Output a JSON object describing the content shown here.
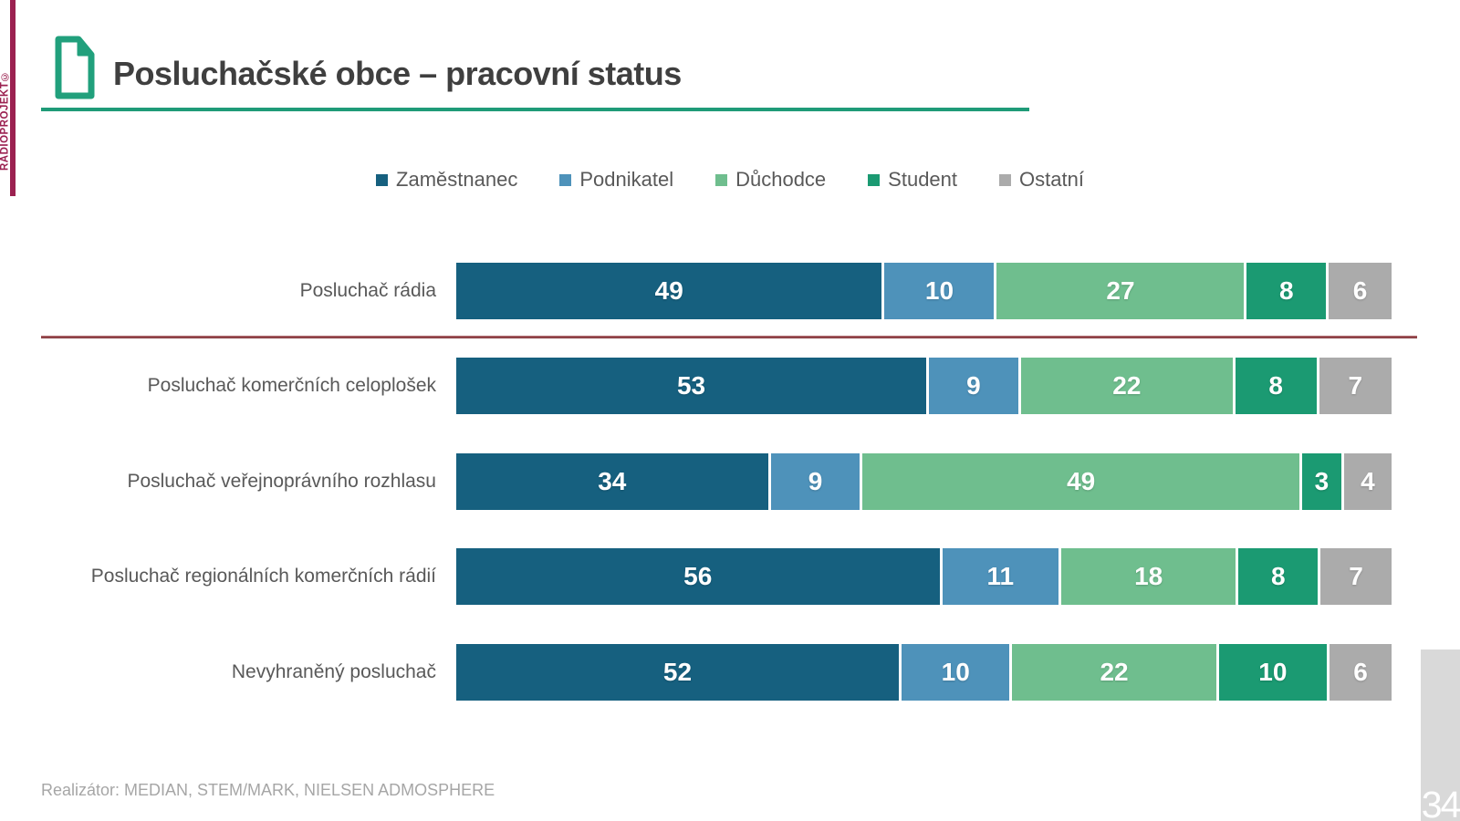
{
  "brand": {
    "vertical_text": "RADIOPROJEKT©"
  },
  "header": {
    "title": "Posluchačské obce – pracovní status"
  },
  "legend": {
    "items": [
      {
        "key": "zamestnanec",
        "label": "Zaměstnanec",
        "color": "#16607F"
      },
      {
        "key": "podnikatel",
        "label": "Podnikatel",
        "color": "#4E92BA"
      },
      {
        "key": "duchodce",
        "label": "Důchodce",
        "color": "#6FBE8E"
      },
      {
        "key": "student",
        "label": "Student",
        "color": "#1B9A72"
      },
      {
        "key": "ostatni",
        "label": "Ostatní",
        "color": "#ABABAB"
      }
    ]
  },
  "chart_data": {
    "type": "bar",
    "orientation": "horizontal",
    "stacked": true,
    "unit": "percent",
    "xlim": [
      0,
      100
    ],
    "title": "Posluchačské obce – pracovní status",
    "series": [
      "Zaměstnanec",
      "Podnikatel",
      "Důchodce",
      "Student",
      "Ostatní"
    ],
    "series_keys": [
      "zamestnanec",
      "podnikatel",
      "duchodce",
      "student",
      "ostatni"
    ],
    "series_colors": [
      "#16607F",
      "#4E92BA",
      "#6FBE8E",
      "#1B9A72",
      "#ABABAB"
    ],
    "categories": [
      "Posluchač rádia",
      "Posluchač komerčních celoplošek",
      "Posluchač veřejnoprávního rozhlasu",
      "Posluchač regionálních komerčních rádií",
      "Nevyhraněný posluchač"
    ],
    "rows": [
      {
        "label": "Posluchač rádia",
        "values": [
          49,
          10,
          27,
          8,
          6
        ]
      },
      {
        "label": "Posluchač komerčních celoplošek",
        "values": [
          53,
          9,
          22,
          8,
          7
        ]
      },
      {
        "label": "Posluchač veřejnoprávního rozhlasu",
        "values": [
          34,
          9,
          49,
          3,
          4
        ]
      },
      {
        "label": "Posluchač regionálních komerčních rádií",
        "values": [
          56,
          11,
          18,
          8,
          7
        ]
      },
      {
        "label": "Nevyhraněný posluchač",
        "values": [
          52,
          10,
          22,
          10,
          6
        ]
      }
    ],
    "value_label_color": "#FFFFFF",
    "legend_position": "top",
    "grid": false
  },
  "footer": {
    "realizator": "Realizátor: MEDIAN, STEM/MARK, NIELSEN ADMOSPHERE"
  },
  "page": {
    "number": "34"
  },
  "colors": {
    "brand": "#9B2150",
    "title_text": "#3F3F3F",
    "title_underline": "#1F9B78",
    "separator_line": "#8E3B3E",
    "label_text": "#595959",
    "footer_text": "#A6A6A6",
    "page_box": "#D9D9D9"
  }
}
